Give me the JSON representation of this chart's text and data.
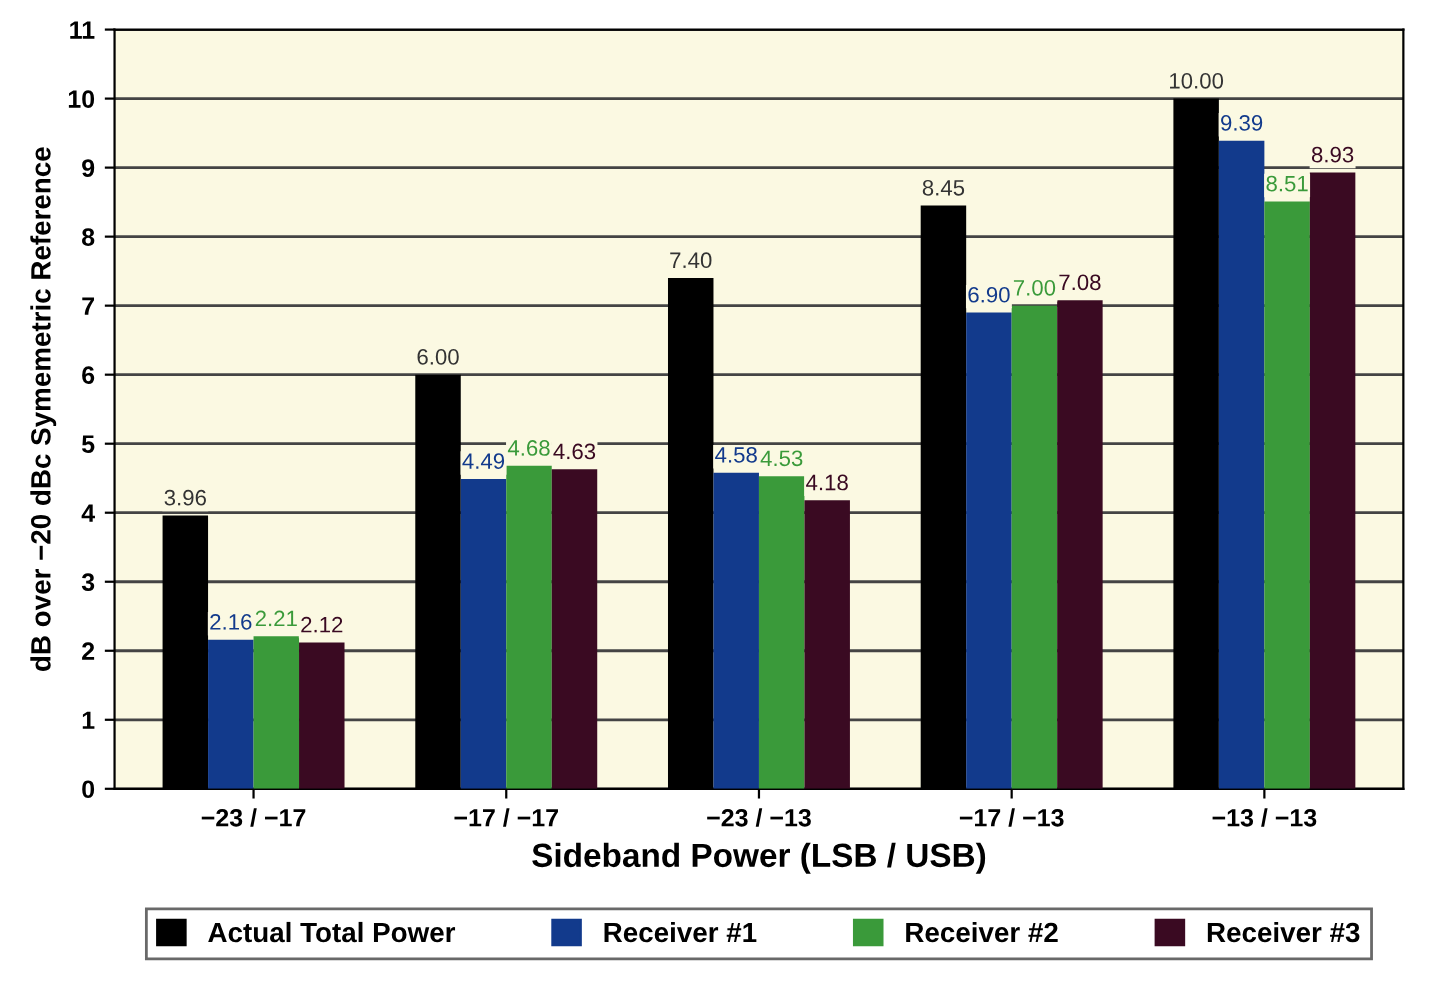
{
  "chart_data": {
    "type": "bar",
    "xlabel": "Sideband Power (LSB / USB)",
    "ylabel": "dB over −20 dBc Symemetric Reference",
    "categories": [
      "−23 / −17",
      "−17 / −17",
      "−23 / −13",
      "−17 / −13",
      "−13 / −13"
    ],
    "series": [
      {
        "name": "Actual Total Power",
        "color": "#000000",
        "values": [
          3.96,
          6.0,
          7.4,
          8.45,
          10.0
        ],
        "value_labels": [
          "3.96",
          "6.00",
          "7.40",
          "8.45",
          "10.00"
        ]
      },
      {
        "name": "Receiver #1",
        "color": "#123a8c",
        "values": [
          2.16,
          4.49,
          4.58,
          6.9,
          9.39
        ],
        "value_labels": [
          "2.16",
          "4.49",
          "4.58",
          "6.90",
          "9.39"
        ]
      },
      {
        "name": "Receiver #2",
        "color": "#3a9a3a",
        "values": [
          2.21,
          4.68,
          4.53,
          7.0,
          8.51
        ],
        "value_labels": [
          "2.21",
          "4.68",
          "4.53",
          "7.00",
          "8.51"
        ]
      },
      {
        "name": "Receiver #3",
        "color": "#3a0a22",
        "values": [
          2.12,
          4.63,
          4.18,
          7.08,
          8.93
        ],
        "value_labels": [
          "2.12",
          "4.63",
          "4.18",
          "7.08",
          "8.93"
        ]
      }
    ],
    "ylim": [
      0,
      11
    ],
    "yticks": [
      0,
      1,
      2,
      3,
      4,
      5,
      6,
      7,
      8,
      9,
      10,
      11
    ],
    "grid": "y",
    "legend": "bottom"
  }
}
